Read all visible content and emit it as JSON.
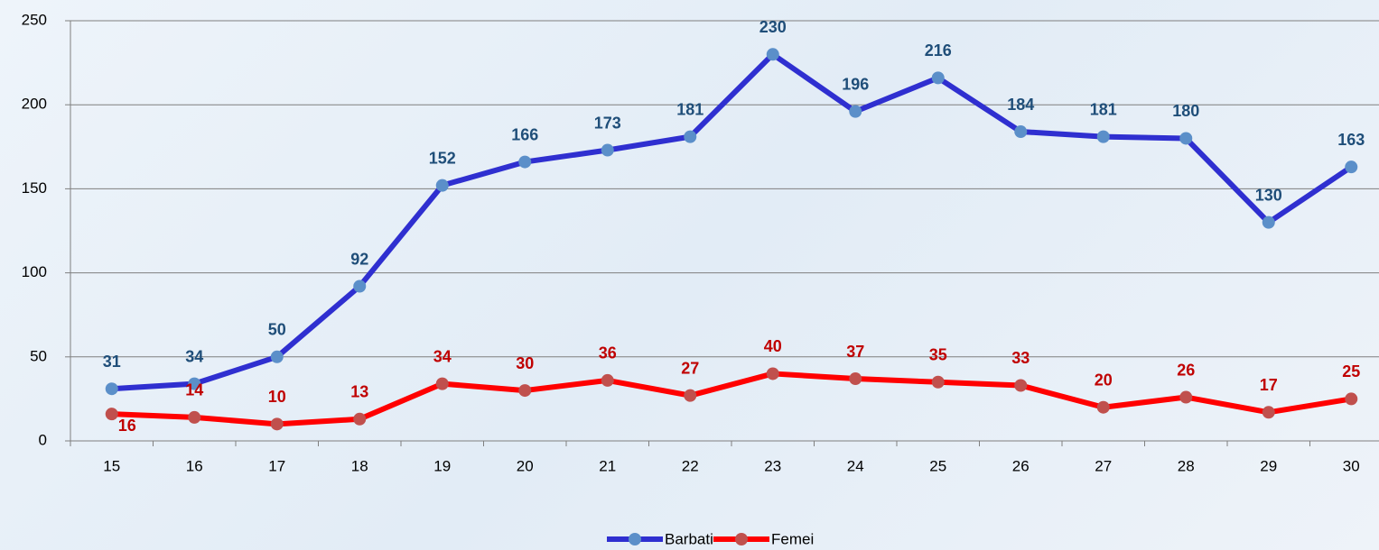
{
  "chart_data": {
    "type": "line",
    "categories": [
      "15",
      "16",
      "17",
      "18",
      "19",
      "20",
      "21",
      "22",
      "23",
      "24",
      "25",
      "26",
      "27",
      "28",
      "29",
      "30"
    ],
    "series": [
      {
        "name": "Barbati",
        "color": "#2f2fd0",
        "marker_color": "#5b8fc9",
        "label_color": "#1f4e79",
        "values": [
          31,
          34,
          50,
          92,
          152,
          166,
          173,
          181,
          230,
          196,
          216,
          184,
          181,
          180,
          130,
          163
        ]
      },
      {
        "name": "Femei",
        "color": "#ff0000",
        "marker_color": "#c0504d",
        "label_color": "#c00000",
        "values": [
          16,
          14,
          10,
          13,
          34,
          30,
          36,
          27,
          40,
          37,
          35,
          33,
          20,
          26,
          17,
          25
        ]
      }
    ],
    "ylim": [
      0,
      250
    ],
    "yticks": [
      0,
      50,
      100,
      150,
      200,
      250
    ],
    "grid": true,
    "legend": "bottom"
  }
}
